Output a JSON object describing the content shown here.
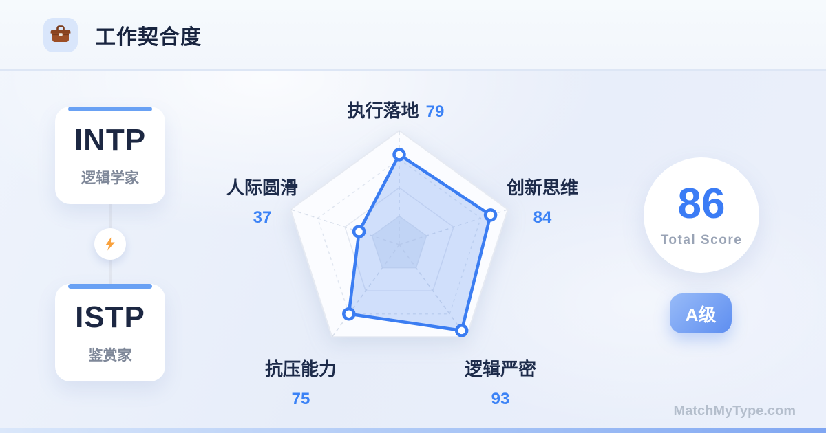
{
  "header": {
    "title": "工作契合度",
    "icon": "briefcase-icon"
  },
  "pair": {
    "left": {
      "code": "INTP",
      "name": "逻辑学家"
    },
    "right": {
      "code": "ISTP",
      "name": "鉴赏家"
    },
    "connector_icon": "lightning-icon"
  },
  "score": {
    "value": "86",
    "label": "Total Score",
    "grade": "A级"
  },
  "watermark": "MatchMyType.com",
  "colors": {
    "accent_blue": "#3b7df2",
    "value_blue": "#3b82f6",
    "card_accent": "#69a1f4",
    "bolt_orange": "#f9a13c",
    "grade_gradient_start": "#98bbf8",
    "grade_gradient_end": "#5e8ef0"
  },
  "chart_data": {
    "type": "radar",
    "title": "工作契合度",
    "categories": [
      "执行落地",
      "创新思维",
      "逻辑严密",
      "抗压能力",
      "人际圆滑"
    ],
    "values": [
      79,
      84,
      93,
      75,
      37
    ],
    "max": 100,
    "grid": "pentagon rings at 25/50/75/100, dashed axes",
    "legend": "none"
  }
}
